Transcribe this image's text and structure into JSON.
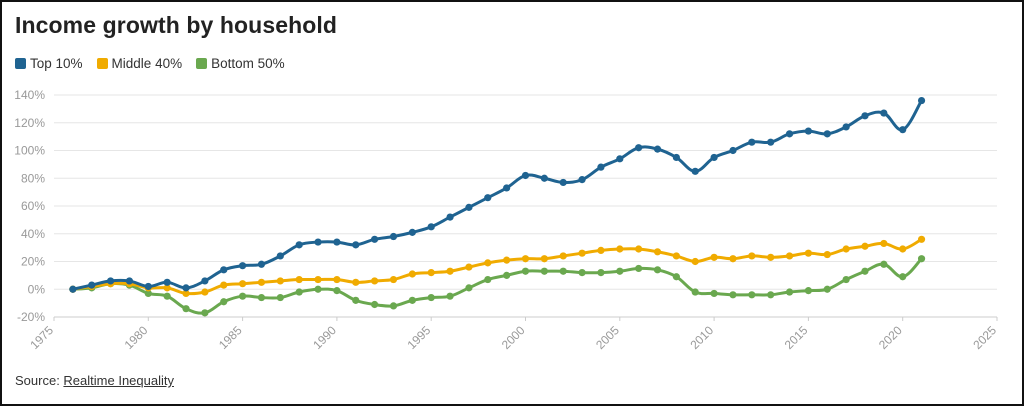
{
  "chart_data": {
    "type": "line",
    "title": "Income growth by household",
    "source_prefix": "Source: ",
    "source_link": "Realtime Inequality",
    "xlabel": "",
    "ylabel": "",
    "xlim": [
      1975,
      2025
    ],
    "ylim": [
      -20,
      140
    ],
    "x_ticks": [
      1975,
      1980,
      1985,
      1990,
      1995,
      2000,
      2005,
      2010,
      2015,
      2020,
      2025
    ],
    "y_ticks": [
      -20,
      0,
      20,
      40,
      60,
      80,
      100,
      120,
      140
    ],
    "y_tick_suffix": "%",
    "grid": "horizontal",
    "legend_position": "top-left",
    "x": [
      1976,
      1977,
      1978,
      1979,
      1980,
      1981,
      1982,
      1983,
      1984,
      1985,
      1986,
      1987,
      1988,
      1989,
      1990,
      1991,
      1992,
      1993,
      1994,
      1995,
      1996,
      1997,
      1998,
      1999,
      2000,
      2001,
      2002,
      2003,
      2004,
      2005,
      2006,
      2007,
      2008,
      2009,
      2010,
      2011,
      2012,
      2013,
      2014,
      2015,
      2016,
      2017,
      2018,
      2019,
      2020,
      2021
    ],
    "series": [
      {
        "name": "Top 10%",
        "color": "#1f6391",
        "values": [
          0,
          3,
          6,
          6,
          2,
          5,
          1,
          6,
          14,
          17,
          18,
          24,
          32,
          34,
          34,
          32,
          36,
          38,
          41,
          45,
          52,
          59,
          66,
          73,
          82,
          80,
          77,
          79,
          88,
          94,
          102,
          101,
          95,
          85,
          95,
          100,
          106,
          106,
          112,
          114,
          112,
          117,
          125,
          127,
          115,
          136
        ]
      },
      {
        "name": "Middle 40%",
        "color": "#f0ab00",
        "values": [
          0,
          2,
          4,
          4,
          1,
          1,
          -3,
          -2,
          3,
          4,
          5,
          6,
          7,
          7,
          7,
          5,
          6,
          7,
          11,
          12,
          13,
          16,
          19,
          21,
          22,
          22,
          24,
          26,
          28,
          29,
          29,
          27,
          24,
          20,
          23,
          22,
          24,
          23,
          24,
          26,
          25,
          29,
          31,
          33,
          29,
          36
        ]
      },
      {
        "name": "Bottom 50%",
        "color": "#6aa84f",
        "values": [
          0,
          1,
          4,
          3,
          -3,
          -5,
          -14,
          -17,
          -9,
          -5,
          -6,
          -6,
          -2,
          0,
          -1,
          -8,
          -11,
          -12,
          -8,
          -6,
          -5,
          1,
          7,
          10,
          13,
          13,
          13,
          12,
          12,
          13,
          15,
          14,
          9,
          -2,
          -3,
          -4,
          -4,
          -4,
          -2,
          -1,
          0,
          7,
          13,
          18,
          9,
          22
        ]
      }
    ]
  }
}
